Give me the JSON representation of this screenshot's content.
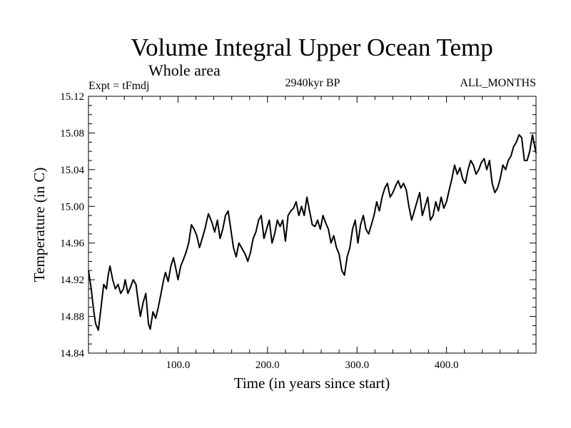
{
  "chart_data": {
    "type": "line",
    "title": "Volume Integral Upper Ocean Temp",
    "subtitle": "Whole area",
    "annotations": {
      "left": "Expt = tFmdj",
      "center": "2940kyr BP",
      "right": "ALL_MONTHS"
    },
    "xlabel": "Time (in years since start)",
    "ylabel": "Temperature (in C)",
    "xlim": [
      0,
      500
    ],
    "ylim": [
      14.84,
      15.12
    ],
    "xticks": [
      100,
      200,
      300,
      400
    ],
    "xtick_labels": [
      "100.0",
      "200.0",
      "300.0",
      "400.0"
    ],
    "yticks": [
      14.84,
      14.88,
      14.92,
      14.96,
      15.0,
      15.04,
      15.08,
      15.12
    ],
    "ytick_labels": [
      "14.84",
      "14.88",
      "14.92",
      "14.96",
      "15.00",
      "15.04",
      "15.08",
      "15.12"
    ],
    "grid": false,
    "series": [
      {
        "name": "temperature",
        "color": "#000000",
        "x": [
          0,
          3,
          6,
          8,
          11,
          14,
          17,
          20,
          22,
          24,
          27,
          30,
          33,
          36,
          39,
          41,
          44,
          47,
          50,
          53,
          56,
          58,
          61,
          64,
          67,
          69,
          72,
          75,
          78,
          81,
          84,
          86,
          89,
          92,
          95,
          98,
          100,
          103,
          106,
          109,
          112,
          115,
          118,
          121,
          124,
          127,
          130,
          134,
          138,
          141,
          144,
          147,
          150,
          153,
          156,
          159,
          162,
          165,
          168,
          171,
          175,
          178,
          181,
          184,
          187,
          190,
          193,
          196,
          199,
          202,
          205,
          208,
          211,
          214,
          217,
          220,
          223,
          226,
          229,
          232,
          235,
          238,
          241,
          244,
          247,
          250,
          253,
          256,
          259,
          262,
          265,
          268,
          271,
          274,
          277,
          280,
          283,
          286,
          289,
          292,
          295,
          298,
          301,
          304,
          307,
          310,
          313,
          316,
          319,
          322,
          325,
          328,
          331,
          334,
          337,
          340,
          343,
          346,
          349,
          352,
          355,
          358,
          361,
          364,
          367,
          370,
          373,
          376,
          379,
          382,
          385,
          388,
          391,
          394,
          397,
          400,
          403,
          406,
          409,
          412,
          415,
          418,
          421,
          424,
          427,
          430,
          433,
          436,
          439,
          442,
          445,
          448,
          451,
          454,
          457,
          460,
          463,
          466,
          469,
          472,
          475,
          478,
          481,
          484,
          487,
          490,
          493,
          496,
          500
        ],
        "values": [
          14.93,
          14.91,
          14.885,
          14.872,
          14.865,
          14.89,
          14.915,
          14.91,
          14.925,
          14.935,
          14.92,
          14.91,
          14.915,
          14.905,
          14.91,
          14.92,
          14.905,
          14.912,
          14.92,
          14.915,
          14.893,
          14.88,
          14.895,
          14.905,
          14.872,
          14.866,
          14.885,
          14.878,
          14.89,
          14.905,
          14.92,
          14.928,
          14.918,
          14.935,
          14.944,
          14.93,
          14.92,
          14.935,
          14.942,
          14.95,
          14.96,
          14.98,
          14.975,
          14.968,
          14.955,
          14.965,
          14.975,
          14.992,
          14.982,
          14.972,
          14.985,
          14.965,
          14.975,
          14.99,
          14.995,
          14.975,
          14.955,
          14.945,
          14.96,
          14.955,
          14.948,
          14.94,
          14.95,
          14.965,
          14.972,
          14.985,
          14.99,
          14.965,
          14.975,
          14.985,
          14.96,
          14.97,
          14.985,
          14.978,
          14.985,
          14.962,
          14.99,
          14.995,
          14.998,
          15.005,
          14.99,
          15.0,
          14.99,
          15.01,
          14.995,
          14.98,
          14.978,
          14.985,
          14.975,
          14.99,
          14.982,
          14.975,
          14.96,
          14.968,
          14.955,
          14.948,
          14.93,
          14.925,
          14.945,
          14.955,
          14.975,
          14.985,
          14.96,
          14.98,
          14.99,
          14.975,
          14.97,
          14.98,
          14.99,
          15.005,
          14.995,
          15.01,
          15.02,
          15.025,
          15.01,
          15.015,
          15.022,
          15.028,
          15.02,
          15.025,
          15.018,
          15.0,
          14.985,
          14.995,
          15.005,
          15.015,
          14.99,
          15.0,
          15.01,
          14.985,
          14.99,
          15.005,
          14.995,
          15.01,
          14.998,
          15.005,
          15.018,
          15.03,
          15.045,
          15.035,
          15.042,
          15.03,
          15.025,
          15.04,
          15.05,
          15.045,
          15.035,
          15.04,
          15.048,
          15.052,
          15.04,
          15.05,
          15.025,
          15.015,
          15.02,
          15.03,
          15.045,
          15.04,
          15.05,
          15.055,
          15.065,
          15.07,
          15.078,
          15.075,
          15.05,
          15.05,
          15.06,
          15.078,
          15.058
        ]
      }
    ]
  }
}
